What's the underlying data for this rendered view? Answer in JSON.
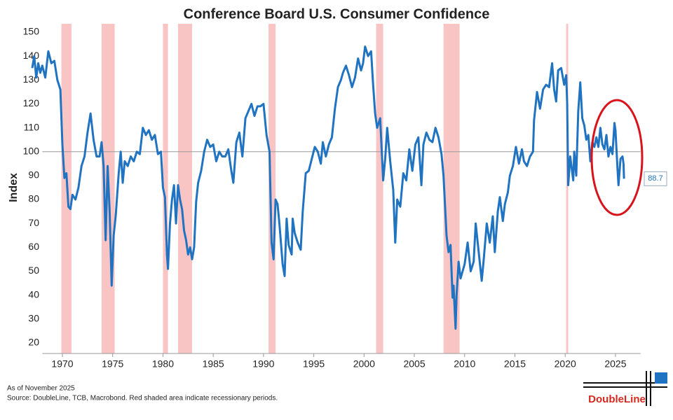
{
  "chart_data": {
    "type": "line",
    "title": "Conference Board U.S. Consumer Confidence",
    "y_label": "Index",
    "note": "As of November 2025",
    "source": "Source: DoubleLine, TCB, Macrobond. Red shaded area indicate recessionary periods.",
    "logo": "DoubleLine",
    "xlim": [
      1968,
      2027.5
    ],
    "ylim": [
      15.6,
      153.5
    ],
    "xticks": [
      1970,
      1975,
      1980,
      1985,
      1990,
      1995,
      2000,
      2005,
      2010,
      2015,
      2020,
      2025
    ],
    "yticks": [
      20,
      30,
      40,
      50,
      60,
      70,
      80,
      90,
      100,
      110,
      120,
      130,
      140,
      150
    ],
    "reference_line": 100,
    "recession_color": "#f9c4c4",
    "recessions": [
      [
        1969.9,
        1970.9
      ],
      [
        1973.9,
        1975.2
      ],
      [
        1980.0,
        1980.5
      ],
      [
        1981.5,
        1982.9
      ],
      [
        1990.5,
        1991.2
      ],
      [
        2001.2,
        2001.9
      ],
      [
        2007.9,
        2009.5
      ],
      [
        2020.1,
        2020.3
      ]
    ],
    "series": [
      {
        "name": "Consumer Confidence",
        "color": "#1f73c1",
        "x": [
          1967.0,
          1967.2,
          1967.4,
          1967.6,
          1967.8,
          1968.0,
          1968.3,
          1968.6,
          1968.9,
          1969.2,
          1969.5,
          1969.8,
          1970.0,
          1970.2,
          1970.4,
          1970.6,
          1970.8,
          1971.0,
          1971.3,
          1971.6,
          1971.9,
          1972.2,
          1972.5,
          1972.8,
          1973.1,
          1973.4,
          1973.7,
          1973.9,
          1974.1,
          1974.3,
          1974.5,
          1974.7,
          1974.9,
          1975.1,
          1975.3,
          1975.6,
          1975.8,
          1976.0,
          1976.2,
          1976.5,
          1976.8,
          1977.1,
          1977.4,
          1977.7,
          1978.0,
          1978.3,
          1978.6,
          1978.9,
          1979.2,
          1979.5,
          1979.8,
          1980.0,
          1980.2,
          1980.4,
          1980.5,
          1980.7,
          1980.9,
          1981.1,
          1981.3,
          1981.5,
          1981.7,
          1981.9,
          1982.1,
          1982.3,
          1982.5,
          1982.7,
          1982.9,
          1983.1,
          1983.3,
          1983.5,
          1983.8,
          1984.1,
          1984.4,
          1984.7,
          1985.0,
          1985.3,
          1985.6,
          1985.9,
          1986.2,
          1986.5,
          1986.8,
          1987.0,
          1987.3,
          1987.6,
          1987.9,
          1988.2,
          1988.5,
          1988.8,
          1989.1,
          1989.4,
          1989.7,
          1990.0,
          1990.3,
          1990.6,
          1990.8,
          1991.0,
          1991.2,
          1991.4,
          1991.6,
          1991.9,
          1992.1,
          1992.3,
          1992.5,
          1992.8,
          1992.9,
          1993.1,
          1993.4,
          1993.7,
          1993.9,
          1994.2,
          1994.5,
          1994.8,
          1995.1,
          1995.4,
          1995.7,
          1995.9,
          1996.2,
          1996.5,
          1996.8,
          1997.1,
          1997.4,
          1997.7,
          1997.9,
          1998.2,
          1998.5,
          1998.8,
          1999.1,
          1999.4,
          1999.7,
          1999.9,
          2000.1,
          2000.4,
          2000.7,
          2000.9,
          2001.1,
          2001.3,
          2001.6,
          2001.9,
          2002.1,
          2002.3,
          2002.6,
          2002.9,
          2003.1,
          2003.3,
          2003.6,
          2003.9,
          2004.2,
          2004.5,
          2004.8,
          2005.1,
          2005.4,
          2005.7,
          2005.9,
          2006.2,
          2006.5,
          2006.8,
          2007.1,
          2007.4,
          2007.7,
          2007.9,
          2008.2,
          2008.4,
          2008.6,
          2008.8,
          2008.9,
          2009.1,
          2009.2,
          2009.4,
          2009.6,
          2009.8,
          2010.0,
          2010.3,
          2010.6,
          2010.9,
          2011.1,
          2011.4,
          2011.7,
          2011.9,
          2012.2,
          2012.5,
          2012.8,
          2013.0,
          2013.3,
          2013.5,
          2013.8,
          2014.0,
          2014.3,
          2014.5,
          2014.8,
          2015.1,
          2015.4,
          2015.7,
          2015.9,
          2016.2,
          2016.5,
          2016.8,
          2016.9,
          2017.2,
          2017.5,
          2017.8,
          2018.1,
          2018.4,
          2018.7,
          2018.9,
          2019.1,
          2019.3,
          2019.6,
          2019.9,
          2020.1,
          2020.2,
          2020.3,
          2020.5,
          2020.8,
          2020.9,
          2021.1,
          2021.3,
          2021.5,
          2021.7,
          2021.9,
          2022.1,
          2022.3,
          2022.5,
          2022.7,
          2022.9,
          2023.1,
          2023.3,
          2023.5,
          2023.7,
          2023.9,
          2024.1,
          2024.3,
          2024.5,
          2024.7,
          2024.9,
          2025.0,
          2025.2,
          2025.3,
          2025.5,
          2025.7,
          2025.8,
          2025.85
        ],
        "values": [
          135,
          140,
          131,
          137,
          133,
          136,
          131,
          142,
          137,
          138,
          130,
          126,
          103,
          89,
          91,
          77,
          76,
          82,
          80,
          85,
          94,
          98,
          108,
          116,
          105,
          98,
          98,
          104,
          94,
          63,
          94,
          75,
          44,
          65,
          73,
          91,
          100,
          87,
          96,
          94,
          98,
          96,
          100,
          99,
          110,
          107,
          109,
          105,
          107,
          99,
          100,
          85,
          81,
          57,
          51,
          70,
          80,
          86,
          70,
          86,
          80,
          76,
          67,
          63,
          57,
          60,
          55,
          60,
          79,
          87,
          92,
          100,
          105,
          102,
          103,
          96,
          100,
          98,
          98,
          101,
          92,
          87,
          104,
          108,
          98,
          114,
          117,
          120,
          115,
          119,
          119,
          120,
          107,
          100,
          62,
          55,
          80,
          78,
          69,
          53,
          48,
          72,
          61,
          57,
          72,
          66,
          62,
          59,
          75,
          91,
          92,
          97,
          102,
          100,
          95,
          104,
          98,
          103,
          106,
          118,
          127,
          130,
          133,
          136,
          132,
          127,
          131,
          139,
          134,
          137,
          144,
          140,
          142,
          128,
          116,
          110,
          114,
          88,
          97,
          110,
          96,
          84,
          62,
          80,
          77,
          91,
          88,
          101,
          92,
          103,
          106,
          86,
          103,
          108,
          105,
          104,
          110,
          106,
          99,
          90,
          65,
          58,
          61,
          39,
          44,
          26,
          40,
          54,
          47,
          50,
          53,
          62,
          50,
          54,
          70,
          58,
          46,
          55,
          70,
          62,
          73,
          58,
          75,
          81,
          71,
          78,
          83,
          90,
          94,
          102,
          95,
          101,
          96,
          94,
          98,
          100,
          113,
          125,
          118,
          126,
          128,
          127,
          137,
          126,
          121,
          134,
          135,
          128,
          132,
          120,
          86,
          98,
          88,
          100,
          90,
          117,
          129,
          114,
          111,
          105,
          107,
          96,
          104,
          102,
          106,
          102,
          110,
          103,
          101,
          107,
          98,
          102,
          99,
          112,
          109,
          93,
          86,
          97,
          98,
          95,
          88.7
        ]
      }
    ]
  }
}
